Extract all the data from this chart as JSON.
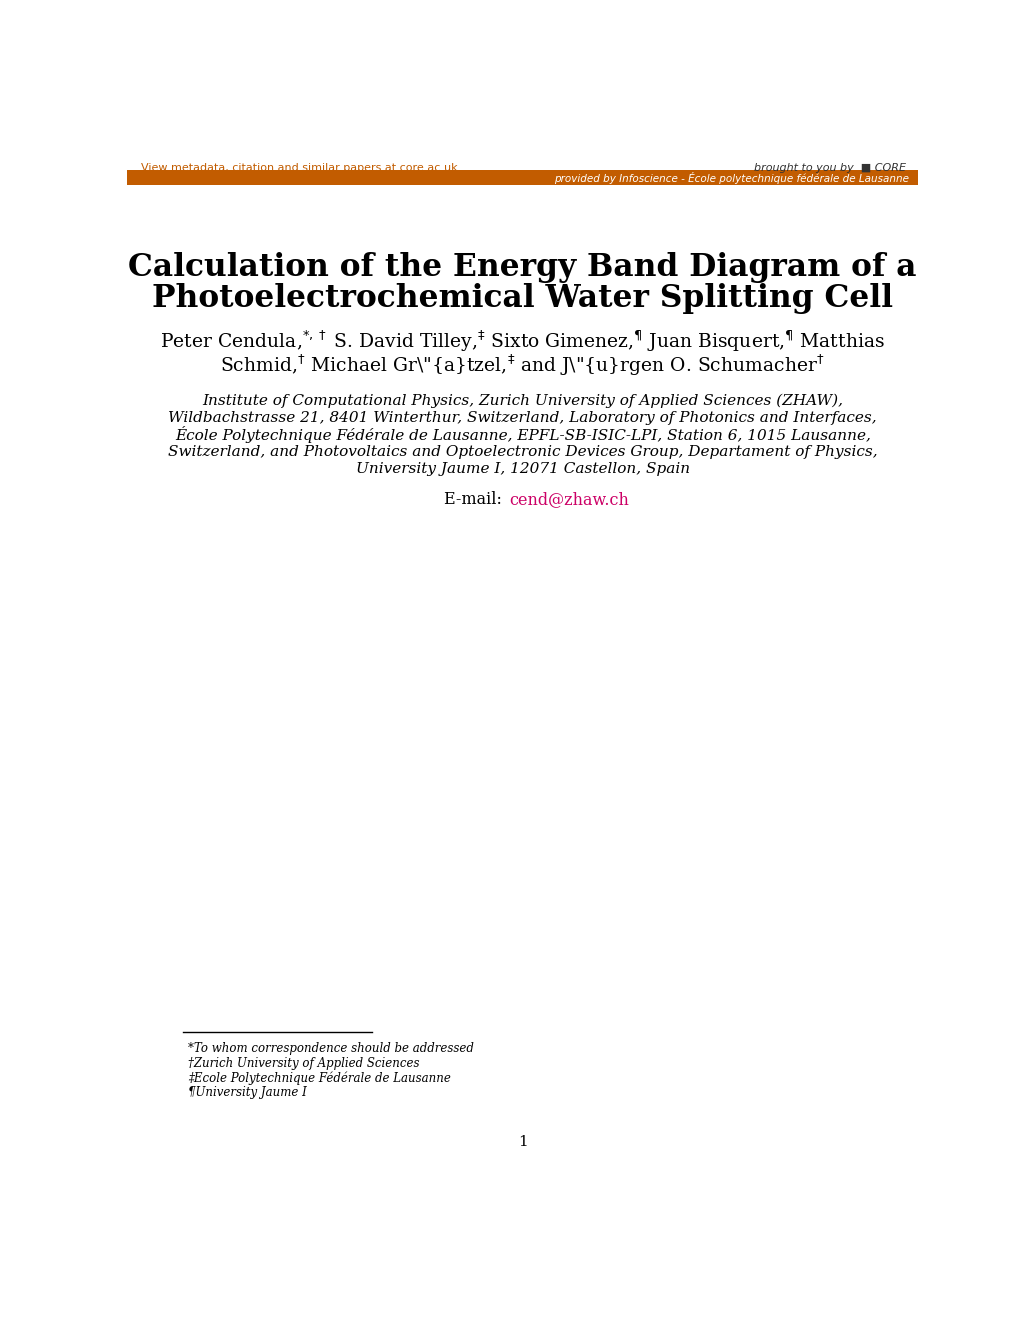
{
  "bg_color": "#ffffff",
  "header_bar_color": "#c25c00",
  "top_link_text": "View metadata, citation and similar papers at core.ac.uk",
  "top_link_color": "#c25c00",
  "subheader_text": "provided by Infoscience - École polytechnique fédérale de Lausanne",
  "title_line1": "Calculation of the Energy Band Diagram of a",
  "title_line2": "Photoelectrochemical Water Splitting Cell",
  "author_line1": "Peter Cendula,*,† S. David Tilley,‡ Sixto Gimenez,¶ Juan Bisquert,¶ Matthias",
  "author_line2": "Schmid,† Michael Grätzel,‡ and Jürgen O. Schumacher†",
  "affil1": "Institute of Computational Physics, Zurich University of Applied Sciences (ZHAW),",
  "affil2": "Wildbachstrasse 21, 8401 Winterthur, Switzerland, Laboratory of Photonics and Interfaces,",
  "affil3": "École Polytechnique Fédérale de Lausanne, EPFL-SB-ISIC-LPI, Station 6, 1015 Lausanne,",
  "affil4": "Switzerland, and Photovoltaics and Optoelectronic Devices Group, Departament of Physics,",
  "affil5": "University Jaume I, 12071 Castellon, Spain",
  "email_label": "E-mail: ",
  "email": "cend@zhaw.ch",
  "email_color": "#cc0066",
  "fn1": "*To whom correspondence should be addressed",
  "fn2": "†Zurich University of Applied Sciences",
  "fn3": "‡Ecole Polytechnique Fédérale de Lausanne",
  "fn4": "¶University Jaume I",
  "page_number": "1"
}
